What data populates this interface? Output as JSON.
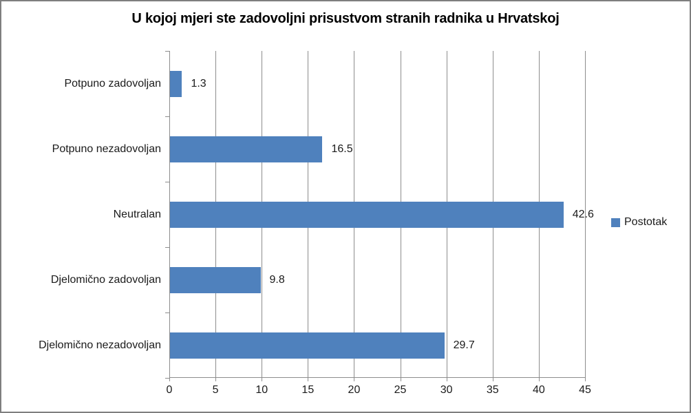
{
  "chart_data": {
    "type": "bar",
    "orientation": "horizontal",
    "title": "U kojoj mjeri ste zadovoljni prisustvom stranih radnika u Hrvatskoj",
    "categories": [
      "Potpuno zadovoljan",
      "Potpuno nezadovoljan",
      "Neutralan",
      "Djelomično zadovoljan",
      "Djelomično nezadovoljan"
    ],
    "values": [
      1.3,
      16.5,
      42.6,
      9.8,
      29.7
    ],
    "value_labels": [
      "1.3",
      "16.5",
      "42.6",
      "9.8",
      "29.7"
    ],
    "series_name": "Postotak",
    "xlabel": "",
    "ylabel": "",
    "xlim": [
      0,
      45
    ],
    "xticks": [
      0,
      5,
      10,
      15,
      20,
      25,
      30,
      35,
      40,
      45
    ],
    "xtick_labels": [
      "0",
      "5",
      "10",
      "15",
      "20",
      "25",
      "30",
      "35",
      "40",
      "45"
    ],
    "grid": "vertical-on",
    "legend_position": "right",
    "colors": {
      "bar": "#4F81BD",
      "gridline": "#8C8C8C",
      "axis": "#8C8C8C",
      "frame_border": "#7F7F7F",
      "text": "#1A1A1A",
      "title_text": "#000000"
    }
  }
}
